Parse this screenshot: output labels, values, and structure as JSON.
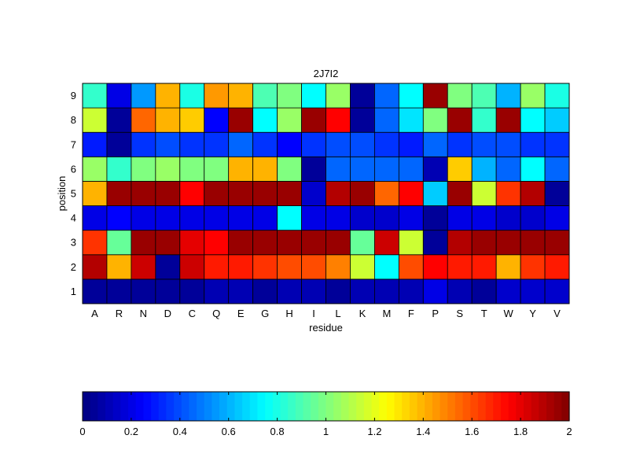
{
  "chart_data": {
    "type": "heatmap",
    "title": "2J7I2",
    "xlabel": "residue",
    "ylabel": "position",
    "x_categories": [
      "A",
      "R",
      "N",
      "D",
      "C",
      "Q",
      "E",
      "G",
      "H",
      "I",
      "L",
      "K",
      "M",
      "F",
      "P",
      "S",
      "T",
      "W",
      "Y",
      "V"
    ],
    "y_categories": [
      "1",
      "2",
      "3",
      "4",
      "5",
      "6",
      "7",
      "8",
      "9"
    ],
    "values": [
      [
        0.05,
        0.05,
        0.05,
        0.05,
        0.05,
        0.1,
        0.1,
        0.05,
        0.1,
        0.1,
        0.05,
        0.1,
        0.1,
        0.1,
        0.2,
        0.1,
        0.05,
        0.15,
        0.15,
        0.15
      ],
      [
        1.9,
        1.4,
        1.85,
        0.05,
        1.85,
        1.7,
        1.7,
        1.65,
        1.6,
        1.6,
        1.5,
        1.15,
        0.75,
        1.6,
        1.75,
        1.7,
        1.7,
        1.4,
        1.65,
        1.7
      ],
      [
        1.65,
        0.95,
        1.95,
        1.95,
        1.8,
        1.75,
        1.95,
        1.95,
        1.95,
        1.95,
        1.95,
        0.95,
        1.85,
        1.15,
        0.05,
        1.9,
        1.95,
        1.95,
        1.95,
        1.95
      ],
      [
        0.2,
        0.25,
        0.2,
        0.2,
        0.2,
        0.2,
        0.2,
        0.2,
        0.75,
        0.2,
        0.2,
        0.15,
        0.15,
        0.2,
        0.05,
        0.2,
        0.2,
        0.15,
        0.15,
        0.2
      ],
      [
        1.4,
        1.95,
        1.95,
        1.95,
        1.75,
        1.95,
        1.95,
        1.95,
        1.95,
        0.15,
        1.9,
        1.95,
        1.55,
        1.75,
        0.65,
        1.95,
        1.15,
        1.65,
        1.9,
        0.05
      ],
      [
        1.05,
        0.85,
        1.0,
        1.05,
        1.0,
        1.0,
        1.4,
        1.4,
        1.0,
        0.05,
        0.45,
        0.45,
        0.45,
        0.45,
        0.1,
        1.35,
        0.6,
        0.45,
        0.75,
        0.45
      ],
      [
        0.3,
        0.05,
        0.35,
        0.4,
        0.35,
        0.35,
        0.45,
        0.35,
        0.25,
        0.35,
        0.4,
        0.4,
        0.35,
        0.3,
        0.45,
        0.35,
        0.4,
        0.4,
        0.35,
        0.35
      ],
      [
        1.15,
        0.05,
        1.55,
        1.4,
        1.35,
        0.25,
        1.95,
        0.75,
        1.05,
        1.95,
        1.75,
        0.05,
        0.45,
        0.7,
        1.0,
        1.95,
        0.85,
        1.95,
        0.75,
        0.65
      ],
      [
        0.85,
        0.2,
        0.55,
        1.4,
        0.8,
        1.45,
        1.4,
        0.9,
        1.0,
        0.75,
        1.05,
        0.05,
        0.45,
        0.75,
        1.95,
        1.0,
        0.9,
        0.6,
        1.05,
        0.8
      ]
    ],
    "colorbar": {
      "min": 0,
      "max": 2,
      "ticks": [
        "0",
        "0.2",
        "0.4",
        "0.6",
        "0.8",
        "1",
        "1.2",
        "1.4",
        "1.6",
        "1.8",
        "2"
      ]
    },
    "colormap": "jet",
    "grid": false,
    "legend": "colorbar-bottom"
  }
}
